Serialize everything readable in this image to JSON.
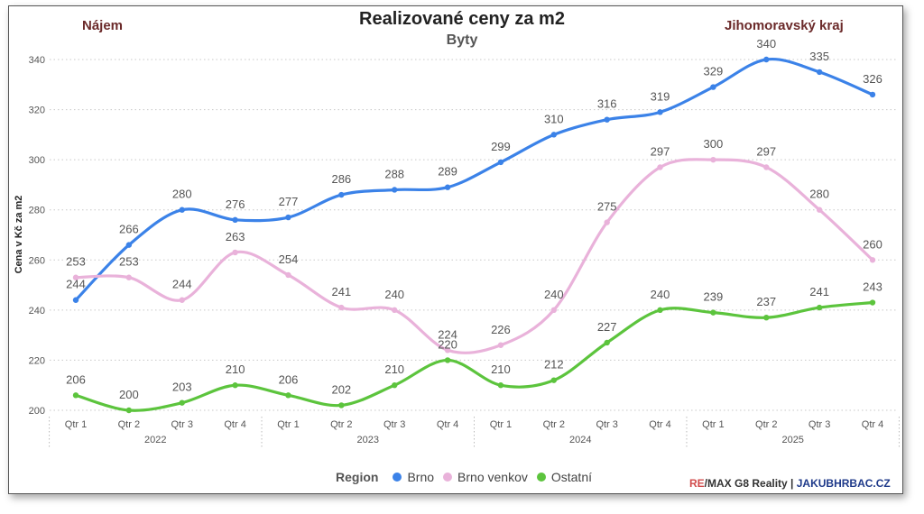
{
  "header": {
    "title": "Realizované ceny za m2",
    "subtitle": "Byty",
    "left_tag": "Nájem",
    "right_tag": "Jihomoravský kraj"
  },
  "legend": {
    "label": "Region"
  },
  "brand": {
    "remax_re": "RE",
    "remax_rest": "/MAX G8 Reality",
    "separator": " | ",
    "site": "JAKUBHRBAC.CZ"
  },
  "chart_data": {
    "type": "line",
    "title": "Realizované ceny za m2",
    "subtitle": "Byty",
    "ylabel": "Cena v Kč za m2",
    "xlabel": "",
    "ylim": [
      200,
      345
    ],
    "yticks": [
      200,
      220,
      240,
      260,
      280,
      300,
      320,
      340
    ],
    "grid": true,
    "legend_position": "bottom",
    "categories": [
      "Qtr 1",
      "Qtr 2",
      "Qtr 3",
      "Qtr 4",
      "Qtr 1",
      "Qtr 2",
      "Qtr 3",
      "Qtr 4",
      "Qtr 1",
      "Qtr 2",
      "Qtr 3",
      "Qtr 4",
      "Qtr 1",
      "Qtr 2",
      "Qtr 3",
      "Qtr 4"
    ],
    "years": [
      "2022",
      "2023",
      "2024",
      "2025"
    ],
    "series": [
      {
        "name": "Brno",
        "color": "#3b82e8",
        "values": [
          244,
          266,
          280,
          276,
          277,
          286,
          288,
          289,
          299,
          310,
          316,
          319,
          329,
          340,
          335,
          326
        ]
      },
      {
        "name": "Brno venkov",
        "color": "#e9b2da",
        "values": [
          253,
          253,
          244,
          263,
          254,
          241,
          240,
          224,
          226,
          240,
          275,
          297,
          300,
          297,
          280,
          260
        ]
      },
      {
        "name": "Ostatní",
        "color": "#5cc43d",
        "values": [
          206,
          200,
          203,
          210,
          206,
          202,
          210,
          220,
          210,
          212,
          227,
          240,
          239,
          237,
          241,
          243
        ]
      }
    ]
  }
}
